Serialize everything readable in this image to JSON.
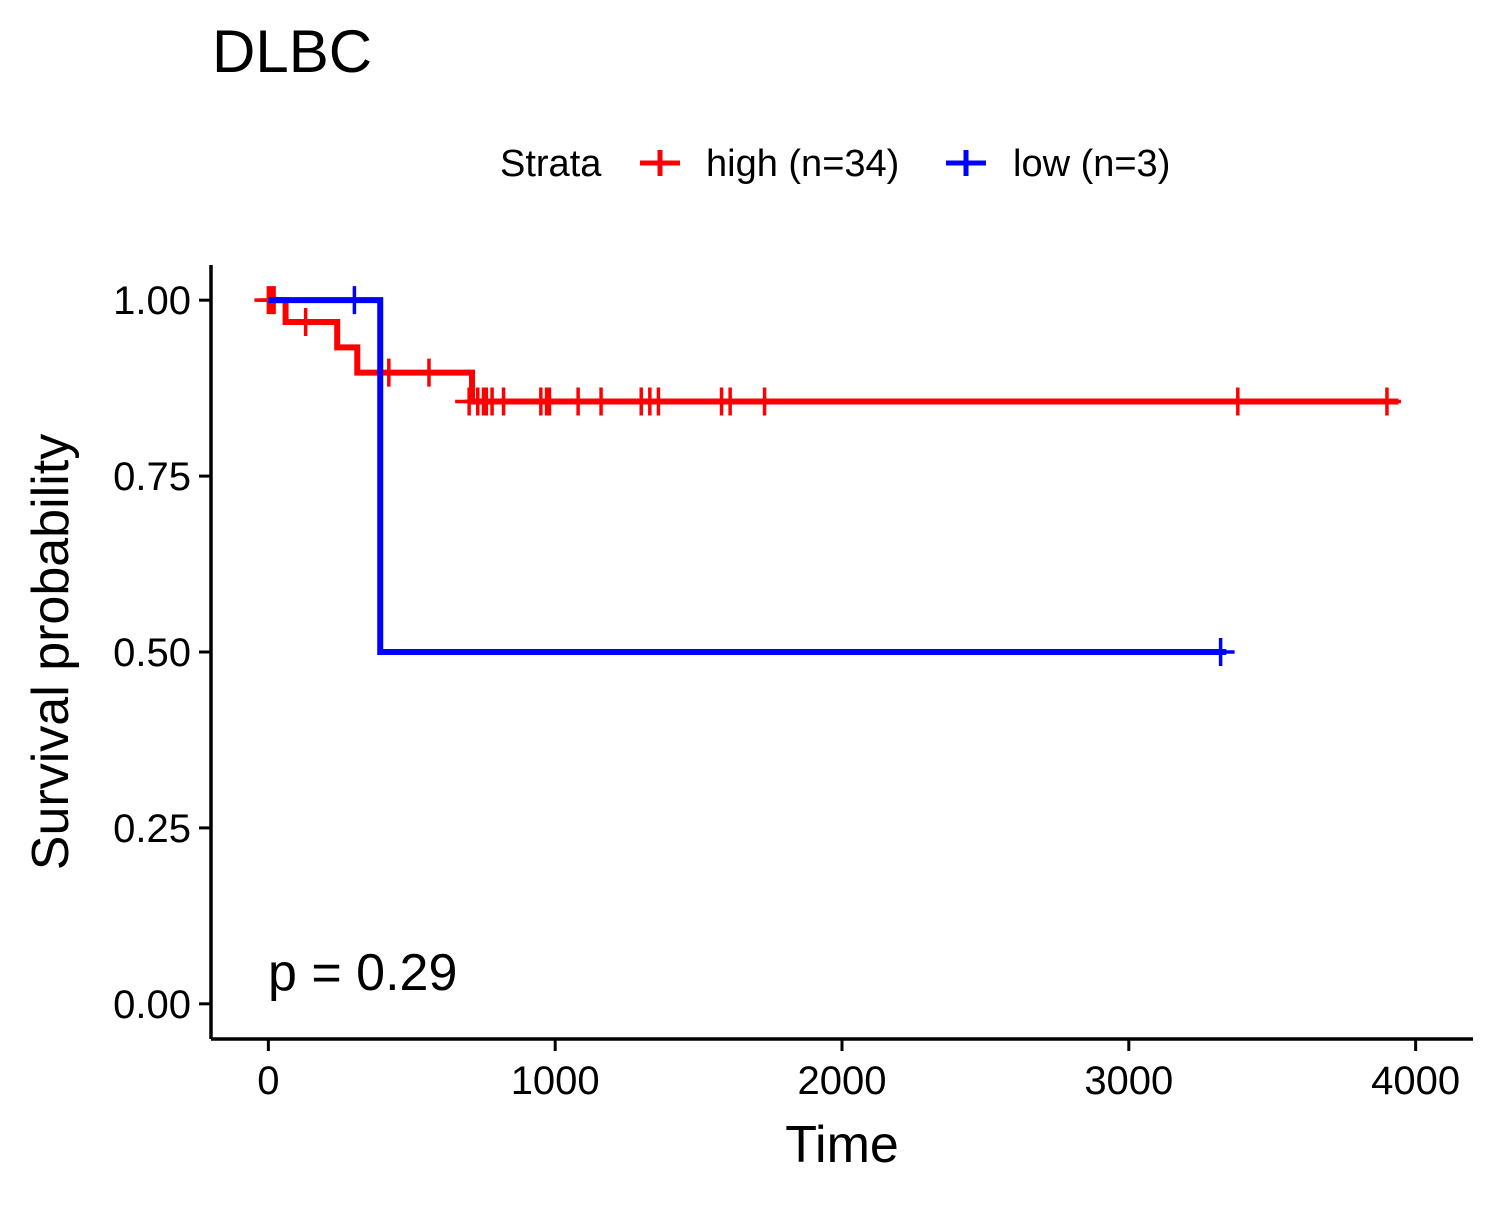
{
  "chart_data": {
    "type": "line",
    "title": "DLBC",
    "xlabel": "Time",
    "ylabel": "Survival probability",
    "xlim": [
      -200,
      4200
    ],
    "ylim": [
      -0.05,
      1.05
    ],
    "xticks": [
      0,
      1000,
      2000,
      3000,
      4000
    ],
    "yticks": [
      0.0,
      0.25,
      0.5,
      0.75,
      1.0
    ],
    "xtick_labels": [
      "0",
      "1000",
      "2000",
      "3000",
      "4000"
    ],
    "ytick_labels": [
      "0.00",
      "0.25",
      "0.50",
      "0.75",
      "1.00"
    ],
    "grid": false,
    "legend_position": "top",
    "legend_title": "Strata",
    "annotation": "p = 0.29",
    "series": [
      {
        "name": "high (n=34)",
        "color": "#ff0000",
        "step_times": [
          0,
          60,
          240,
          310,
          710,
          3940
        ],
        "step_values": [
          1.0,
          0.969,
          0.933,
          0.897,
          0.856,
          0.856
        ],
        "censor_times": [
          0,
          10,
          20,
          130,
          420,
          560,
          700,
          730,
          750,
          760,
          780,
          820,
          950,
          970,
          980,
          1080,
          1160,
          1300,
          1330,
          1360,
          1580,
          1610,
          1730,
          3380,
          3900
        ],
        "censor_values": [
          1.0,
          1.0,
          1.0,
          0.969,
          0.897,
          0.897,
          0.856,
          0.856,
          0.856,
          0.856,
          0.856,
          0.856,
          0.856,
          0.856,
          0.856,
          0.856,
          0.856,
          0.856,
          0.856,
          0.856,
          0.856,
          0.856,
          0.856,
          0.856,
          0.856
        ]
      },
      {
        "name": "low (n=3)",
        "color": "#0000ff",
        "step_times": [
          0,
          390,
          3340
        ],
        "step_values": [
          1.0,
          0.5,
          0.5
        ],
        "censor_times": [
          300,
          3320
        ],
        "censor_values": [
          1.0,
          0.5
        ]
      }
    ]
  }
}
